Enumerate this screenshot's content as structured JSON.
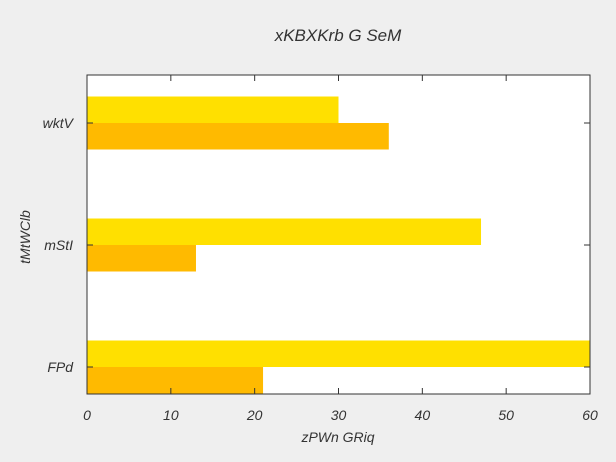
{
  "chart_data": {
    "type": "bar",
    "orientation": "horizontal",
    "title": "xKBXKrb G SeM",
    "xlabel": "zPWn GRiq",
    "ylabel": "tMtWClb",
    "categories": [
      "FPd",
      "mStI",
      "wktV"
    ],
    "series": [
      {
        "values": [
          60,
          47,
          30
        ],
        "color": "#ffe000"
      },
      {
        "values": [
          21,
          13,
          36
        ],
        "color": "#ffba00"
      }
    ],
    "xlim": [
      0,
      60
    ],
    "xticks": [
      0,
      10,
      20,
      30,
      40,
      50,
      60
    ],
    "grid": false,
    "legend": "none",
    "plot_background": "#ffffff",
    "figure_background": "#efefef"
  }
}
